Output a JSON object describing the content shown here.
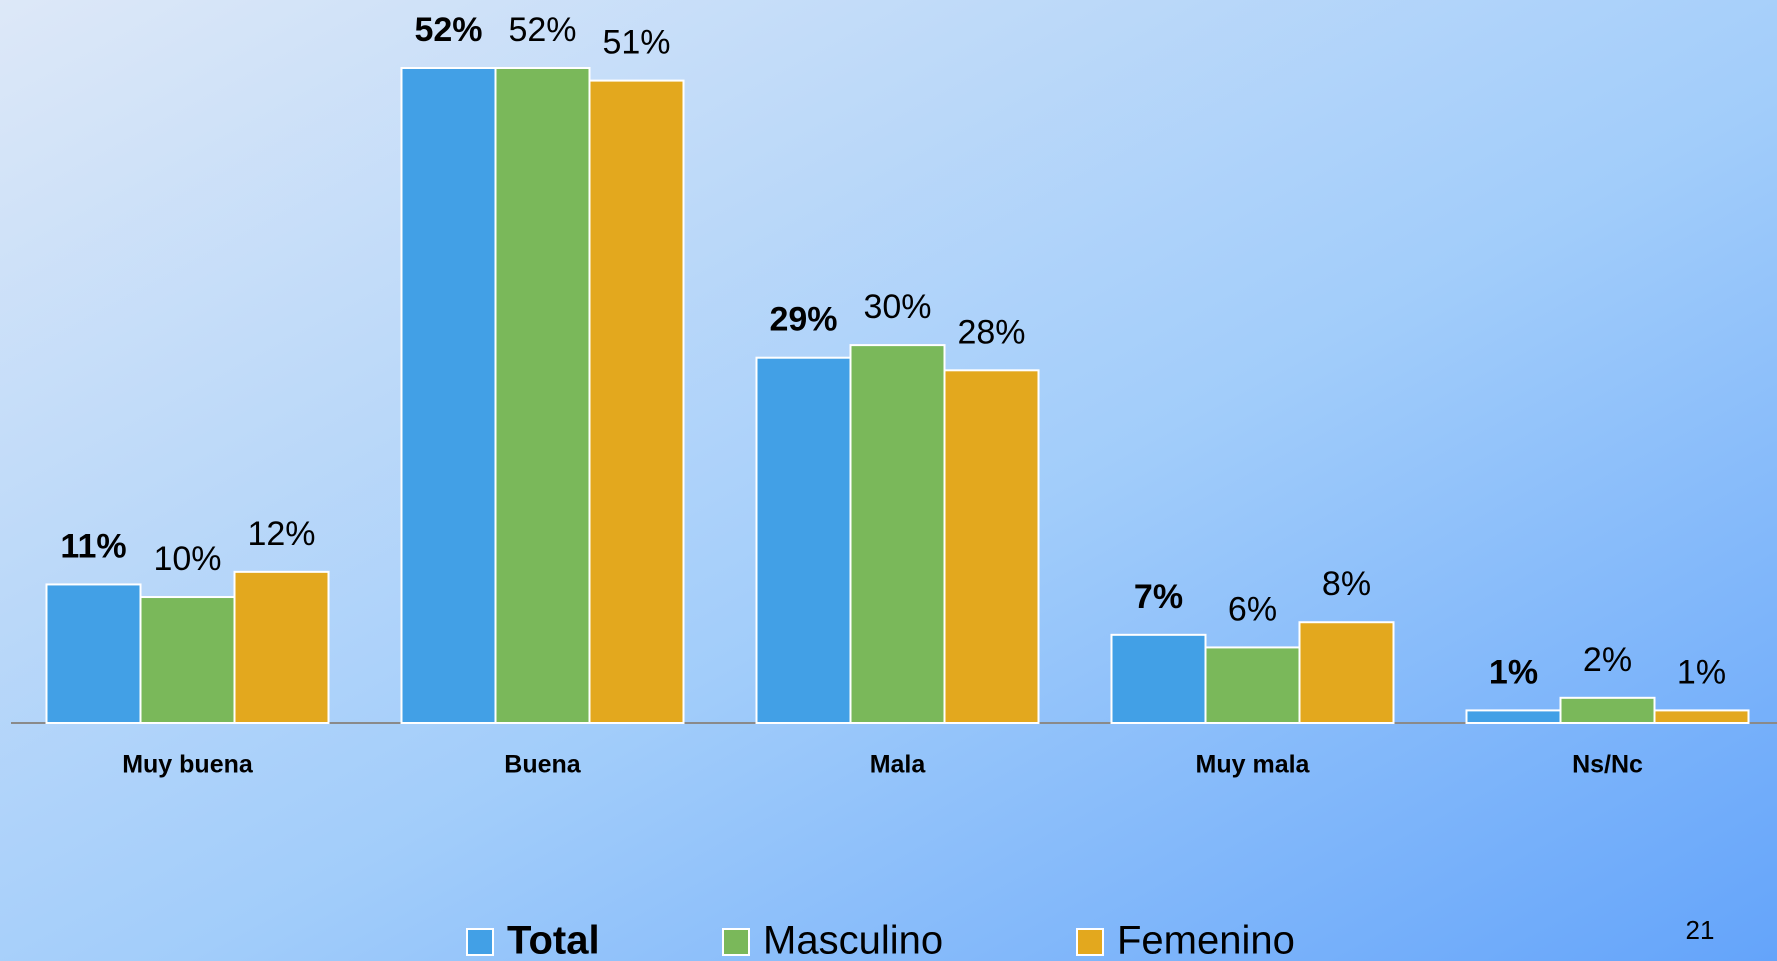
{
  "chart_data": {
    "type": "bar",
    "categories": [
      "Muy buena",
      "Buena",
      "Mala",
      "Muy mala",
      "Ns/Nc"
    ],
    "series": [
      {
        "name": "Total",
        "color": "#42a0e6",
        "values": [
          11,
          52,
          29,
          7,
          1
        ],
        "value_labels": [
          "11%",
          "52%",
          "29%",
          "7%",
          "1%"
        ]
      },
      {
        "name": "Masculino",
        "color": "#7ab85a",
        "values": [
          10,
          52,
          30,
          6,
          2
        ],
        "value_labels": [
          "10%",
          "52%",
          "30%",
          "6%",
          "2%"
        ]
      },
      {
        "name": "Femenino",
        "color": "#e3a81e",
        "values": [
          12,
          51,
          28,
          8,
          1
        ],
        "value_labels": [
          "12%",
          "51%",
          "28%",
          "8%",
          "1%"
        ]
      }
    ]
  },
  "page_number": "21"
}
